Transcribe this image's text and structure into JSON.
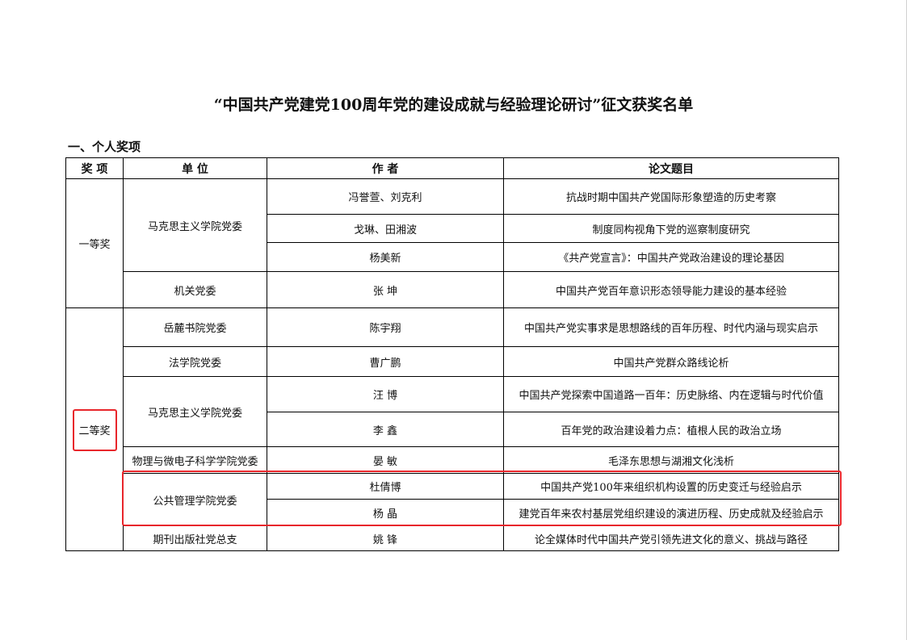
{
  "title": "“中国共产党建党100周年党的建设成就与经验理论研讨”征文获奖名单",
  "section": "一、个人奖项",
  "headers": [
    "奖 项",
    "单 位",
    "作 者",
    "论文题目"
  ],
  "awards": {
    "first": "一等奖",
    "second": "二等奖"
  },
  "rows": [
    {
      "unit": "马克思主义学院党委",
      "author": "冯誉萱、刘克利",
      "paper": "抗战时期中国共产党国际形象塑造的历史考察"
    },
    {
      "author": "戈琳、田湘波",
      "paper": "制度同构视角下党的巡察制度研究"
    },
    {
      "author": "杨美新",
      "paper": "《共产党宣言》：中国共产党政治建设的理论基因"
    },
    {
      "unit": "机关党委",
      "author": "张 坤",
      "paper": "中国共产党百年意识形态领导能力建设的基本经验"
    },
    {
      "unit": "岳麓书院党委",
      "author": "陈宇翔",
      "paper": "中国共产党实事求是思想路线的百年历程、时代内涵与现实启示"
    },
    {
      "unit": "法学院党委",
      "author": "曹广鹏",
      "paper": "中国共产党群众路线论析"
    },
    {
      "unit": "马克思主义学院党委",
      "author": "汪 博",
      "paper": "中国共产党探索中国道路一百年：历史脉络、内在逻辑与时代价值"
    },
    {
      "author": "李 鑫",
      "paper": "百年党的政治建设着力点：植根人民的政治立场"
    },
    {
      "unit": "物理与微电子科学学院党委",
      "author": "晏 敏",
      "paper": "毛泽东思想与湖湘文化浅析"
    },
    {
      "unit": "公共管理学院党委",
      "author": "杜倩博",
      "paper": "中国共产党100年来组织机构设置的历史变迁与经验启示"
    },
    {
      "author": "杨 晶",
      "paper": "建党百年来农村基层党组织建设的演进历程、历史成就及经验启示"
    },
    {
      "unit": "期刊出版社党总支",
      "author": "姚 锋",
      "paper": "论全媒体时代中国共产党引领先进文化的意义、挑战与路径"
    }
  ],
  "highlight_color": "#e8262b"
}
